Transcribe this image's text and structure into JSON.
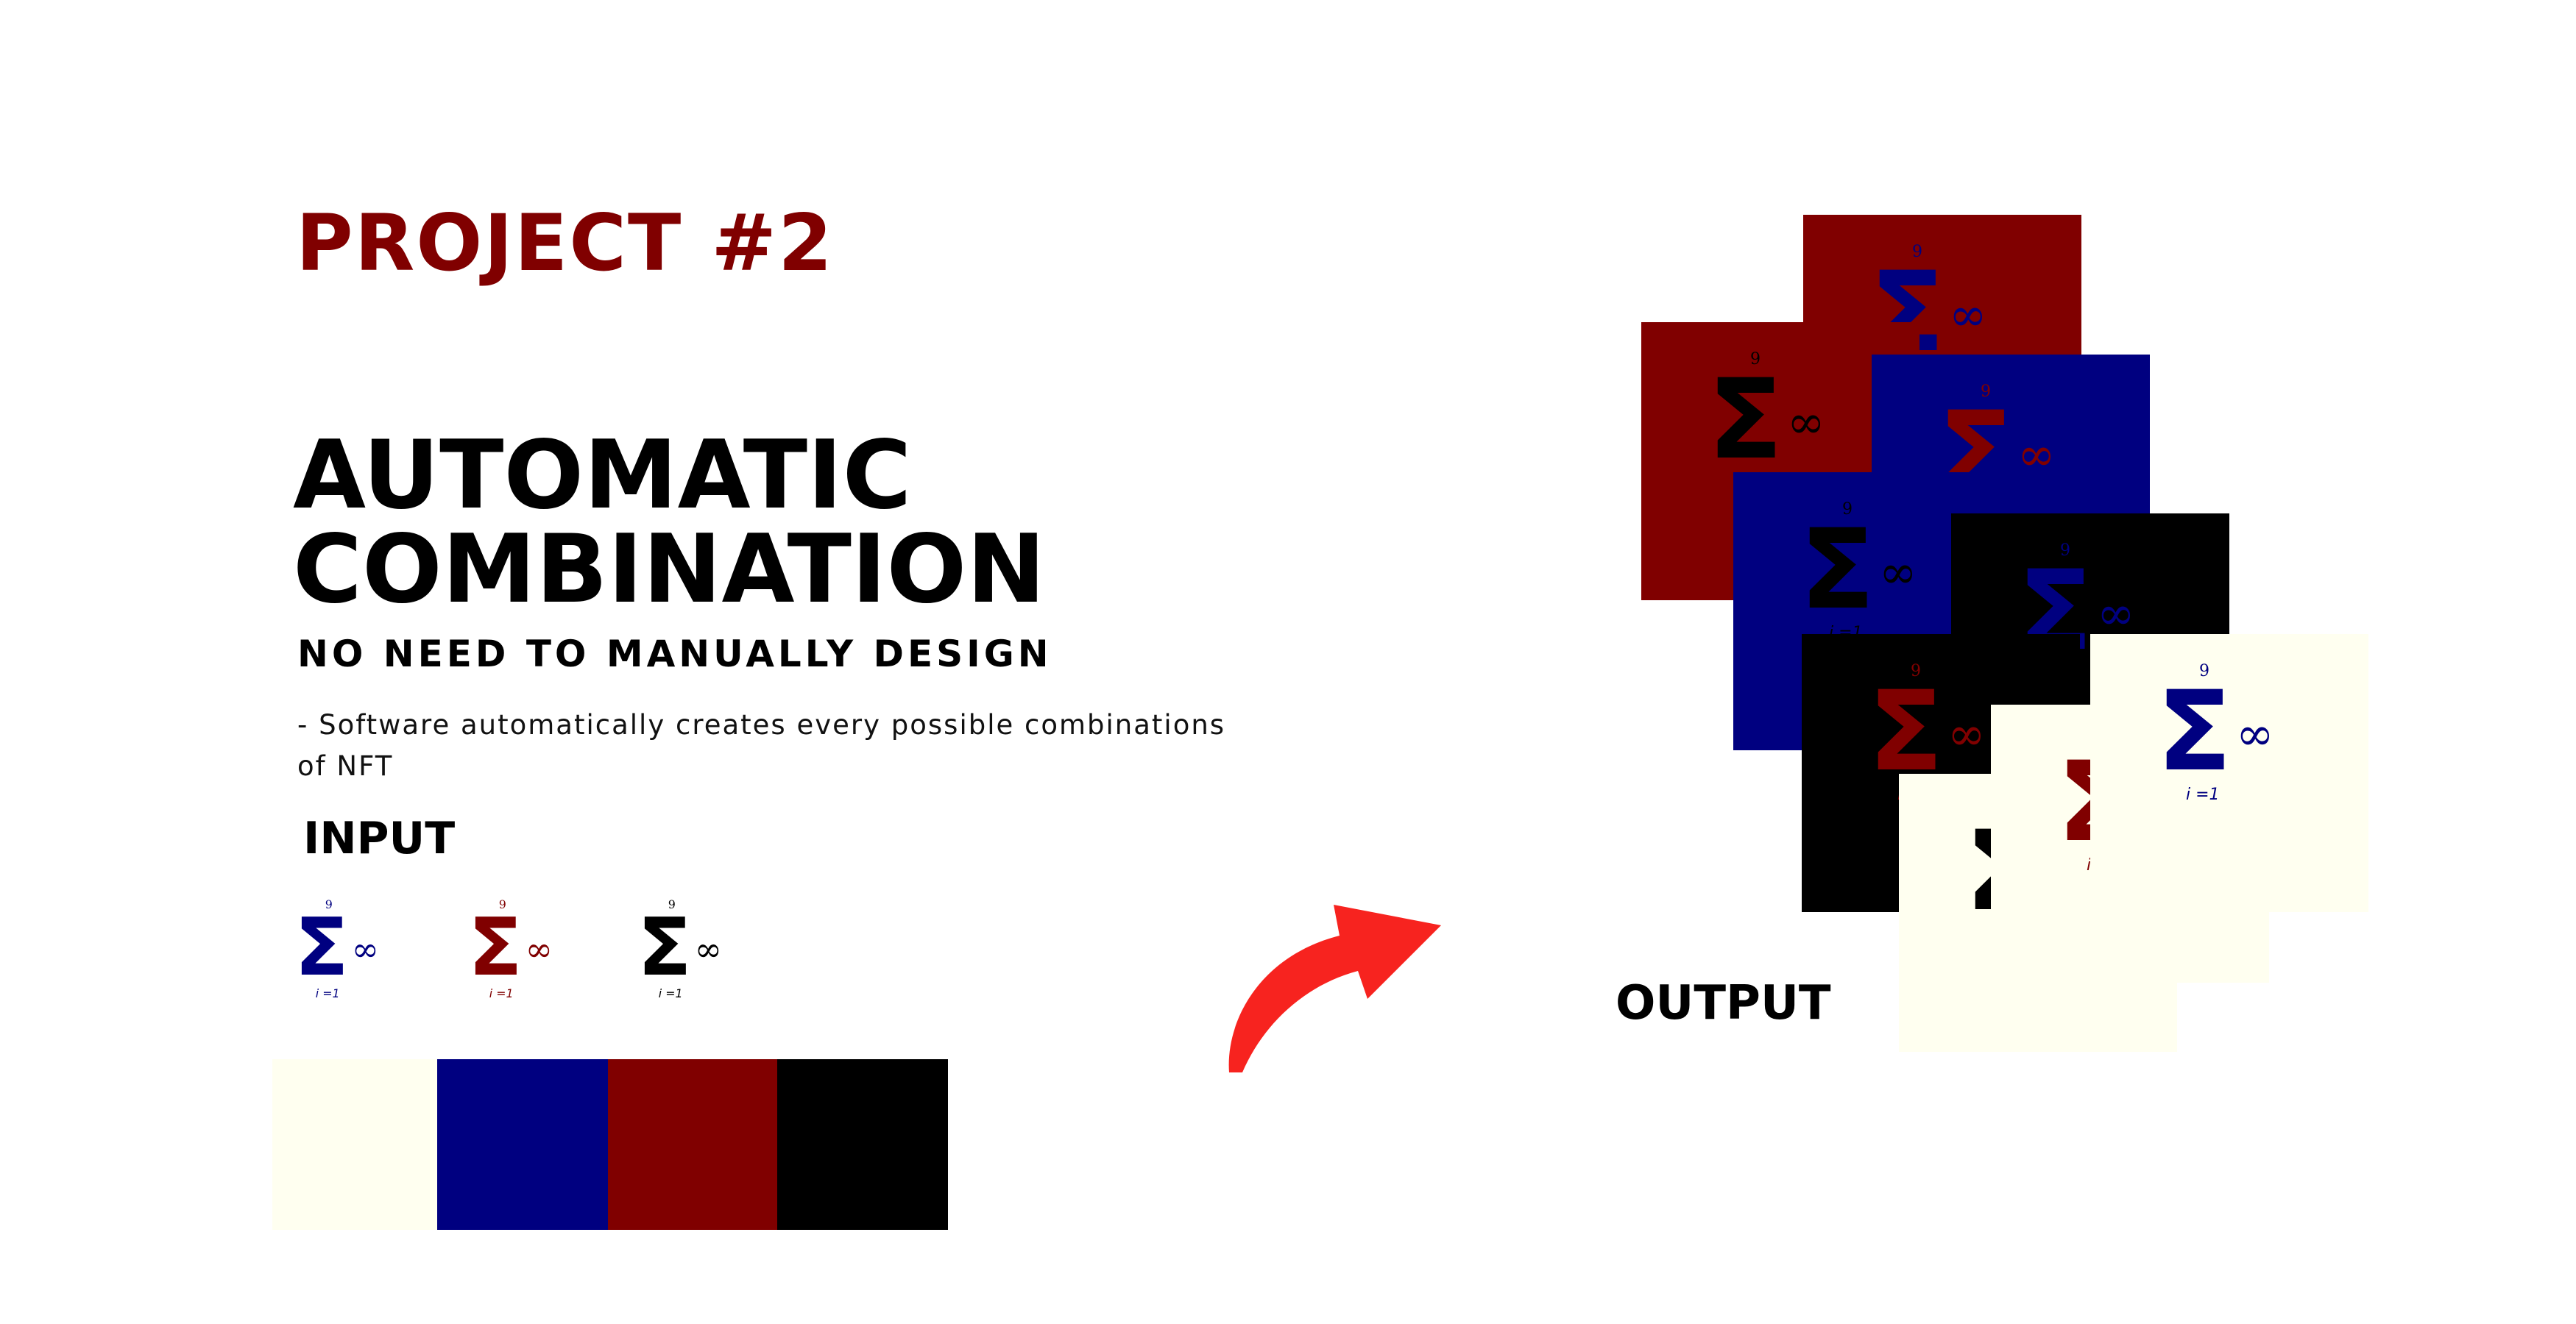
{
  "project_title": "PROJECT #2",
  "main_title_line1": "AUTOMATIC",
  "main_title_line2": "COMBINATION",
  "subtitle": "NO NEED TO MANUALLY DESIGN",
  "description": "- Software automatically creates every possible combinations of NFT",
  "input_label": "INPUT",
  "output_label": "OUTPUT",
  "symbol": {
    "sup": "9",
    "sigma": "Σ",
    "infinity": "∞",
    "sub": "i =1"
  },
  "colors": {
    "cream": "#FFFFF0",
    "navy": "#000080",
    "maroon": "#800000",
    "black": "#000000",
    "arrow": "#F7231F"
  },
  "input_symbol_colors": [
    "navy",
    "maroon",
    "black"
  ],
  "input_swatch_colors": [
    "cream",
    "navy",
    "maroon",
    "black"
  ],
  "output_cards": [
    {
      "bg": "maroon",
      "symbol": "navy"
    },
    {
      "bg": "maroon",
      "symbol": "black"
    },
    {
      "bg": "navy",
      "symbol": "maroon"
    },
    {
      "bg": "navy",
      "symbol": "black"
    },
    {
      "bg": "black",
      "symbol": "navy"
    },
    {
      "bg": "black",
      "symbol": "maroon"
    },
    {
      "bg": "cream",
      "symbol": "black"
    },
    {
      "bg": "cream",
      "symbol": "maroon"
    },
    {
      "bg": "cream",
      "symbol": "navy"
    }
  ]
}
